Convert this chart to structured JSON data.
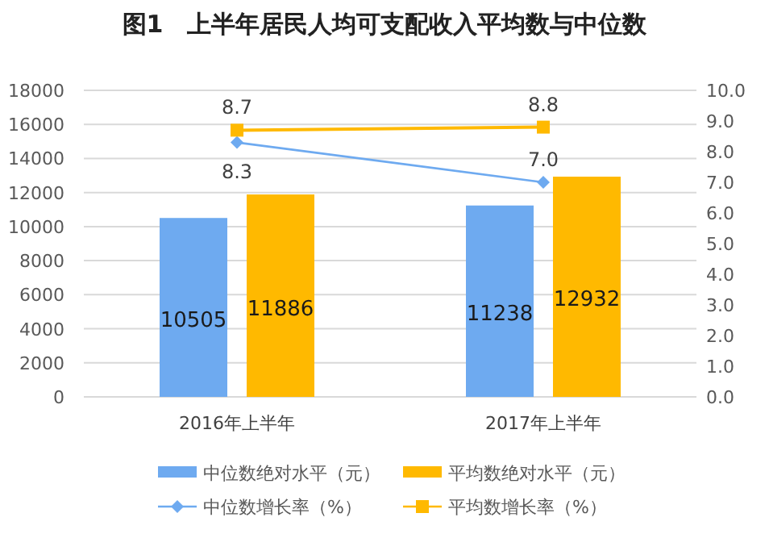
{
  "chart_data": {
    "type": "bar",
    "title": "图1　上半年居民人均可支配收入平均数与中位数",
    "categories": [
      "2016年上半年",
      "2017年上半年"
    ],
    "series": [
      {
        "name": "中位数绝对水平（元）",
        "color": "#6eaaf0",
        "values": [
          10505,
          11238
        ]
      },
      {
        "name": "平均数绝对水平（元）",
        "color": "#ffb900",
        "values": [
          11886,
          12932
        ]
      },
      {
        "name": "中位数增长率（%）",
        "type": "line",
        "axis": "y2",
        "marker": "diamond",
        "color": "#6eaaf0",
        "values": [
          8.3,
          7.0
        ],
        "value_labels": [
          "8.3",
          "7.0"
        ]
      },
      {
        "name": "平均数增长率（%）",
        "type": "line",
        "axis": "y2",
        "marker": "square",
        "color": "#ffb900",
        "values": [
          8.7,
          8.8
        ]
      }
    ],
    "ylim": [
      0,
      18000
    ],
    "yticks": [
      0,
      2000,
      4000,
      6000,
      8000,
      10000,
      12000,
      14000,
      16000,
      18000
    ],
    "y2lim": [
      0,
      10
    ],
    "y2ticks": [
      {
        "value": 0,
        "label": "0.0"
      },
      {
        "value": 1,
        "label": "1.0"
      },
      {
        "value": 2,
        "label": "2.0"
      },
      {
        "value": 3,
        "label": "3.0"
      },
      {
        "value": 4,
        "label": "4.0"
      },
      {
        "value": 5,
        "label": "5.0"
      },
      {
        "value": 6,
        "label": "6.0"
      },
      {
        "value": 7,
        "label": "7.0"
      },
      {
        "value": 8,
        "label": "8.0"
      },
      {
        "value": 9,
        "label": "9.0"
      },
      {
        "value": 10,
        "label": "10.0"
      }
    ],
    "grid": "y",
    "legend": "bottom",
    "data_labels": true
  }
}
